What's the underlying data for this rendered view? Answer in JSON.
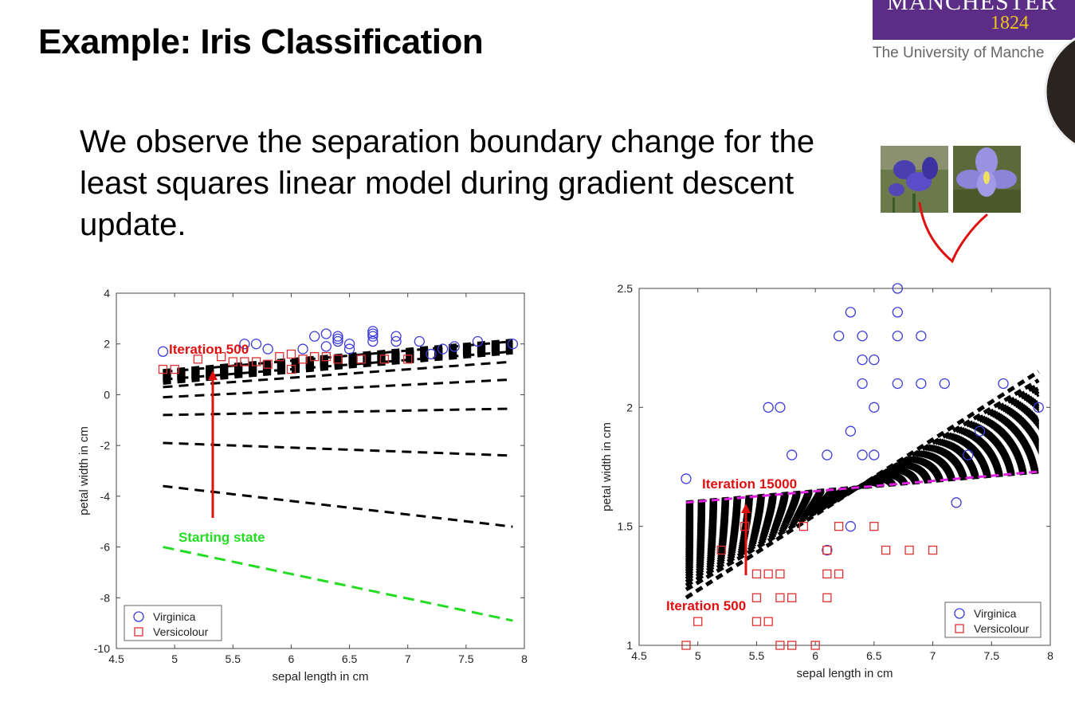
{
  "slide": {
    "title": "Example: Iris Classification",
    "body": "We observe the separation boundary change for the least squares linear model during gradient descent update.",
    "logo": {
      "name": "MANCHESTER",
      "year": "1824",
      "university": "The University of Manche"
    }
  },
  "colors": {
    "virginica": "#3b3bd9",
    "versicolour": "#e03030",
    "boundary": "#000000",
    "start": "#22dd22",
    "annotation": "#e01010",
    "final": "#e020e0"
  },
  "chart_data": [
    {
      "type": "scatter",
      "title": "",
      "xlabel": "sepal length in cm",
      "ylabel": "petal width in cm",
      "xlim": [
        4.5,
        8
      ],
      "ylim": [
        -10,
        4
      ],
      "xticks": [
        "4.5",
        "5",
        "5.5",
        "6",
        "6.5",
        "7",
        "7.5",
        "8"
      ],
      "yticks": [
        "-10",
        "-8",
        "-6",
        "-4",
        "-2",
        "0",
        "2",
        "4"
      ],
      "series": [
        {
          "name": "Virginica",
          "marker": "circle",
          "points": [
            [
              4.9,
              1.7
            ],
            [
              5.6,
              2.0
            ],
            [
              5.7,
              2.0
            ],
            [
              5.8,
              1.8
            ],
            [
              6.1,
              1.8
            ],
            [
              6.2,
              2.3
            ],
            [
              6.3,
              2.4
            ],
            [
              6.3,
              1.9
            ],
            [
              6.4,
              2.3
            ],
            [
              6.4,
              2.2
            ],
            [
              6.4,
              2.1
            ],
            [
              6.5,
              2.0
            ],
            [
              6.5,
              1.8
            ],
            [
              6.7,
              2.5
            ],
            [
              6.7,
              2.4
            ],
            [
              6.7,
              2.3
            ],
            [
              6.7,
              2.1
            ],
            [
              6.9,
              2.3
            ],
            [
              6.9,
              2.1
            ],
            [
              7.1,
              2.1
            ],
            [
              7.2,
              1.6
            ],
            [
              7.3,
              1.8
            ],
            [
              7.4,
              1.9
            ],
            [
              7.6,
              2.1
            ],
            [
              7.9,
              2.0
            ]
          ]
        },
        {
          "name": "Versicolour",
          "marker": "square",
          "points": [
            [
              4.9,
              1.0
            ],
            [
              5.0,
              1.0
            ],
            [
              5.2,
              1.4
            ],
            [
              5.4,
              1.5
            ],
            [
              5.5,
              1.3
            ],
            [
              5.6,
              1.3
            ],
            [
              5.7,
              1.3
            ],
            [
              5.8,
              1.2
            ],
            [
              5.9,
              1.5
            ],
            [
              6.0,
              1.6
            ],
            [
              6.0,
              1.0
            ],
            [
              6.1,
              1.4
            ],
            [
              6.2,
              1.5
            ],
            [
              6.3,
              1.5
            ],
            [
              6.4,
              1.4
            ],
            [
              6.6,
              1.4
            ],
            [
              6.8,
              1.4
            ],
            [
              7.0,
              1.4
            ]
          ]
        }
      ],
      "boundaries": [
        {
          "label": "Starting state",
          "points": [
            [
              4.9,
              -6.0
            ],
            [
              7.9,
              -8.9
            ]
          ]
        },
        {
          "points": [
            [
              4.9,
              -3.6
            ],
            [
              7.9,
              -5.2
            ]
          ]
        },
        {
          "points": [
            [
              4.9,
              -1.9
            ],
            [
              7.9,
              -2.4
            ]
          ]
        },
        {
          "points": [
            [
              4.9,
              -0.8
            ],
            [
              7.9,
              -0.55
            ]
          ]
        },
        {
          "points": [
            [
              4.9,
              -0.1
            ],
            [
              7.9,
              0.6
            ]
          ]
        },
        {
          "points": [
            [
              4.9,
              0.3
            ],
            [
              7.9,
              1.3
            ]
          ]
        },
        {
          "points": [
            [
              4.9,
              0.6
            ],
            [
              7.9,
              1.7
            ]
          ]
        },
        {
          "label": "Iteration 500",
          "points": [
            [
              4.9,
              0.9
            ],
            [
              7.9,
              2.1
            ]
          ]
        }
      ],
      "annotations": [
        "Iteration 500",
        "Starting state"
      ],
      "legend": "bottom-left",
      "grid": false
    },
    {
      "type": "scatter",
      "title": "",
      "xlabel": "sepal length in cm",
      "ylabel": "petal width in cm",
      "xlim": [
        4.5,
        8
      ],
      "ylim": [
        1,
        2.5
      ],
      "xticks": [
        "4.5",
        "5",
        "5.5",
        "6",
        "6.5",
        "7",
        "7.5",
        "8"
      ],
      "yticks": [
        "1",
        "1.5",
        "2",
        "2.5"
      ],
      "series": [
        {
          "name": "Virginica",
          "marker": "circle",
          "points": [
            [
              4.9,
              1.7
            ],
            [
              5.6,
              2.0
            ],
            [
              5.7,
              2.0
            ],
            [
              5.8,
              1.8
            ],
            [
              6.1,
              1.8
            ],
            [
              6.1,
              1.4
            ],
            [
              6.2,
              2.3
            ],
            [
              6.3,
              2.4
            ],
            [
              6.3,
              1.9
            ],
            [
              6.3,
              1.5
            ],
            [
              6.4,
              2.3
            ],
            [
              6.4,
              2.2
            ],
            [
              6.4,
              2.1
            ],
            [
              6.4,
              1.8
            ],
            [
              6.5,
              2.2
            ],
            [
              6.5,
              2.0
            ],
            [
              6.5,
              1.8
            ],
            [
              6.7,
              2.5
            ],
            [
              6.7,
              2.4
            ],
            [
              6.7,
              2.3
            ],
            [
              6.7,
              2.1
            ],
            [
              6.9,
              2.3
            ],
            [
              6.9,
              2.1
            ],
            [
              7.1,
              2.1
            ],
            [
              7.2,
              1.6
            ],
            [
              7.3,
              1.8
            ],
            [
              7.4,
              1.9
            ],
            [
              7.6,
              2.1
            ],
            [
              7.9,
              2.0
            ]
          ]
        },
        {
          "name": "Versicolour",
          "marker": "square",
          "points": [
            [
              4.9,
              1.0
            ],
            [
              5.0,
              1.1
            ],
            [
              5.2,
              1.4
            ],
            [
              5.4,
              1.5
            ],
            [
              5.5,
              1.3
            ],
            [
              5.5,
              1.2
            ],
            [
              5.5,
              1.1
            ],
            [
              5.6,
              1.3
            ],
            [
              5.6,
              1.1
            ],
            [
              5.7,
              1.3
            ],
            [
              5.7,
              1.2
            ],
            [
              5.7,
              1.0
            ],
            [
              5.8,
              1.2
            ],
            [
              5.8,
              1.0
            ],
            [
              5.9,
              1.5
            ],
            [
              6.0,
              1.0
            ],
            [
              6.1,
              1.4
            ],
            [
              6.1,
              1.3
            ],
            [
              6.1,
              1.2
            ],
            [
              6.2,
              1.5
            ],
            [
              6.2,
              1.3
            ],
            [
              6.5,
              1.5
            ],
            [
              6.6,
              1.4
            ],
            [
              6.8,
              1.4
            ],
            [
              7.0,
              1.4
            ]
          ]
        }
      ],
      "boundaries": [
        {
          "label": "Iteration 500",
          "points": [
            [
              4.9,
              1.2
            ],
            [
              7.9,
              2.15
            ]
          ]
        },
        {
          "label": "Iteration 15000",
          "points": [
            [
              4.9,
              1.6
            ],
            [
              7.9,
              1.73
            ]
          ]
        }
      ],
      "annotations": [
        "Iteration 15000",
        "Iteration 500"
      ],
      "legend": "bottom-right",
      "grid": false
    }
  ]
}
